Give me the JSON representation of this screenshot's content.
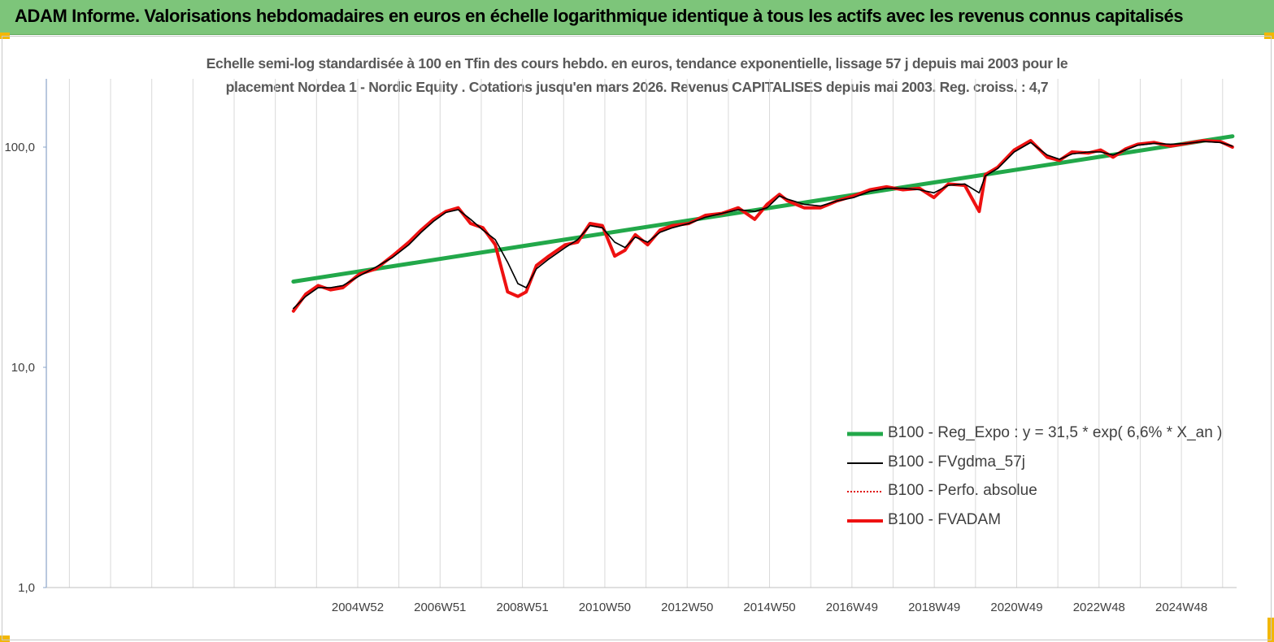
{
  "header": {
    "title": "ADAM Informe. Valorisations hebdomadaires en euros en échelle logarithmique identique à tous les actifs avec les revenus connus capitalisés"
  },
  "chart_data": {
    "type": "line",
    "title_line1": "Echelle semi-log standardisée à 100 en Tfin des cours hebdo. en euros, tendance exponentielle, lissage 57 j depuis mai 2003 pour le",
    "title_line2": "placement Nordea 1 - Nordic Equity . Cotations jusqu'en mars 2026. Revenus CAPITALISES depuis mai 2003. Reg. croiss. : 4,7",
    "yscale": "log",
    "ylim": [
      1,
      200
    ],
    "xlim": [
      1997.4,
      2026.3
    ],
    "y_tick_labels": [
      {
        "value": 1,
        "label": "1,0"
      },
      {
        "value": 10,
        "label": "10,0"
      },
      {
        "value": 100,
        "label": "100,0"
      }
    ],
    "x_tick_labels": [
      {
        "value": 2004.96,
        "label": "2004W52"
      },
      {
        "value": 2006.96,
        "label": "2006W51"
      },
      {
        "value": 2008.96,
        "label": "2008W51"
      },
      {
        "value": 2010.96,
        "label": "2010W50"
      },
      {
        "value": 2012.96,
        "label": "2012W50"
      },
      {
        "value": 2014.96,
        "label": "2014W50"
      },
      {
        "value": 2016.96,
        "label": "2016W49"
      },
      {
        "value": 2018.96,
        "label": "2018W49"
      },
      {
        "value": 2020.96,
        "label": "2020W49"
      },
      {
        "value": 2022.96,
        "label": "2022W48"
      },
      {
        "value": 2024.96,
        "label": "2024W48"
      }
    ],
    "grid": "vertical",
    "legend_position": "right",
    "series": [
      {
        "name": "B100 - Reg_Expo : y = 31,5 * exp( 6,6% *  X_an )",
        "color": "#22a84a",
        "style": "solid-thick",
        "x": [
          2003.4,
          2026.2
        ],
        "y": [
          24.5,
          112
        ]
      },
      {
        "name": "B100 - FVgdma_57j",
        "color": "#000000",
        "style": "solid-thin",
        "x": [
          2003.4,
          2003.7,
          2004.0,
          2004.3,
          2004.6,
          2005.0,
          2005.4,
          2005.8,
          2006.2,
          2006.5,
          2006.8,
          2007.1,
          2007.4,
          2007.7,
          2008.0,
          2008.3,
          2008.6,
          2008.85,
          2009.05,
          2009.3,
          2009.6,
          2010.0,
          2010.3,
          2010.6,
          2010.9,
          2011.2,
          2011.45,
          2011.7,
          2012.0,
          2012.3,
          2012.6,
          2013.0,
          2013.4,
          2013.8,
          2014.2,
          2014.6,
          2014.9,
          2015.2,
          2015.4,
          2015.8,
          2016.2,
          2016.6,
          2017.0,
          2017.4,
          2017.8,
          2018.2,
          2018.6,
          2018.95,
          2019.3,
          2019.7,
          2020.05,
          2020.2,
          2020.5,
          2020.9,
          2021.3,
          2021.7,
          2022.0,
          2022.3,
          2022.7,
          2023.0,
          2023.3,
          2023.6,
          2023.9,
          2024.3,
          2024.7,
          2025.1,
          2025.5,
          2025.9,
          2026.2
        ],
        "y": [
          18.5,
          21,
          23,
          23,
          23.5,
          26,
          28.5,
          31.5,
          36,
          41,
          46,
          50.5,
          52,
          47,
          42,
          38,
          30,
          24,
          23,
          28,
          31,
          35,
          38,
          44,
          43,
          37,
          35,
          39,
          37,
          41,
          43,
          45,
          48,
          50,
          52,
          51,
          53,
          60,
          58,
          55,
          54,
          57,
          59,
          63,
          65,
          65,
          64,
          62,
          67,
          68,
          62,
          74,
          80,
          95,
          105,
          92,
          88,
          93,
          95,
          95,
          92,
          97,
          102,
          104,
          103,
          104,
          106,
          105,
          101
        ]
      },
      {
        "name": "B100 - Perfo. absolue",
        "color": "#e01010",
        "style": "dotted",
        "x": [],
        "y": []
      },
      {
        "name": "B100 - FVADAM",
        "color": "#ee1111",
        "style": "solid-thick",
        "x": [
          2003.4,
          2003.7,
          2004.0,
          2004.3,
          2004.6,
          2005.0,
          2005.4,
          2005.8,
          2006.2,
          2006.5,
          2006.8,
          2007.1,
          2007.4,
          2007.7,
          2008.0,
          2008.3,
          2008.6,
          2008.85,
          2009.05,
          2009.3,
          2009.6,
          2010.0,
          2010.3,
          2010.6,
          2010.9,
          2011.2,
          2011.45,
          2011.7,
          2012.0,
          2012.3,
          2012.6,
          2013.0,
          2013.4,
          2013.8,
          2014.2,
          2014.6,
          2014.9,
          2015.2,
          2015.4,
          2015.8,
          2016.2,
          2016.6,
          2017.0,
          2017.4,
          2017.8,
          2018.2,
          2018.6,
          2018.95,
          2019.3,
          2019.7,
          2020.05,
          2020.2,
          2020.5,
          2020.9,
          2021.3,
          2021.7,
          2022.0,
          2022.3,
          2022.7,
          2023.0,
          2023.3,
          2023.6,
          2023.9,
          2024.3,
          2024.7,
          2025.1,
          2025.5,
          2025.9,
          2026.2
        ],
        "y": [
          18,
          21.5,
          23.5,
          22.5,
          23,
          26.5,
          28,
          32,
          37,
          42,
          47,
          51,
          53,
          45,
          43,
          36,
          22,
          21,
          22,
          29,
          32,
          36,
          37,
          45,
          44,
          32,
          34,
          40,
          36,
          42,
          44,
          45,
          49,
          50,
          53,
          47,
          55,
          61,
          57,
          53,
          53,
          57,
          60,
          64,
          66,
          64,
          65,
          59,
          68,
          67,
          51,
          75,
          81,
          97,
          107,
          90,
          87,
          95,
          94,
          97,
          90,
          98,
          103,
          105,
          101,
          104,
          107,
          106,
          100
        ]
      }
    ]
  }
}
